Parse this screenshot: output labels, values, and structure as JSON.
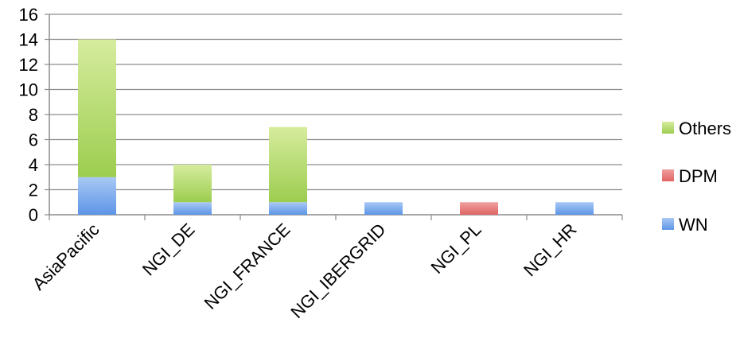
{
  "chart_data": {
    "type": "bar",
    "stacked": true,
    "categories": [
      "AsiaPacific",
      "NGI_DE",
      "NGI_FRANCE",
      "NGI_IBERGRID",
      "NGI_PL",
      "NGI_HR"
    ],
    "series": [
      {
        "name": "WN",
        "values": [
          3,
          1,
          1,
          1,
          0,
          1
        ],
        "color": "#7aa7ec"
      },
      {
        "name": "DPM",
        "values": [
          0,
          0,
          0,
          0,
          1,
          0
        ],
        "color": "#e77b7b"
      },
      {
        "name": "Others",
        "values": [
          11,
          3,
          6,
          0,
          0,
          0
        ],
        "color": "#b3d86a"
      }
    ],
    "yticks": [
      "0",
      "2",
      "4",
      "6",
      "8",
      "10",
      "12",
      "14",
      "16"
    ],
    "ylim": [
      0,
      16
    ],
    "grid": true,
    "legend": {
      "placement": "right",
      "order": [
        "Others",
        "DPM",
        "WN"
      ]
    }
  }
}
